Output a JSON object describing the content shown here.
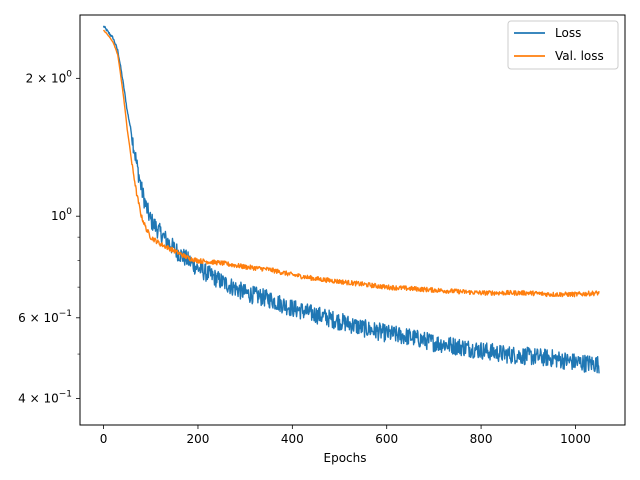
{
  "chart_data": {
    "type": "line",
    "title": "",
    "xlabel": "Epochs",
    "ylabel": "",
    "xlim": [
      -50,
      1105
    ],
    "ylim": [
      0.35,
      2.75
    ],
    "yscale": "log",
    "grid": false,
    "legend_position": "top-right",
    "xticks": [
      {
        "value": 0,
        "label": "0"
      },
      {
        "value": 200,
        "label": "200"
      },
      {
        "value": 400,
        "label": "400"
      },
      {
        "value": 600,
        "label": "600"
      },
      {
        "value": 800,
        "label": "800"
      },
      {
        "value": 1000,
        "label": "1000"
      }
    ],
    "yticks_major": [
      {
        "value": 0.4,
        "label_base": "4 × 10",
        "label_exp": "−1"
      },
      {
        "value": 0.6,
        "label_base": "6 × 10",
        "label_exp": "−1"
      },
      {
        "value": 1.0,
        "label_base": "10",
        "label_exp": "0"
      },
      {
        "value": 2.0,
        "label_base": "2 × 10",
        "label_exp": "0"
      }
    ],
    "yticks_minor": [
      0.5,
      0.7,
      0.8,
      0.9,
      3.0
    ],
    "series": [
      {
        "name": "Loss",
        "color": "#1f77b4",
        "noise": 0.045,
        "x": [
          0,
          10,
          20,
          30,
          40,
          50,
          60,
          70,
          80,
          90,
          100,
          120,
          140,
          160,
          180,
          200,
          250,
          300,
          350,
          400,
          450,
          500,
          550,
          600,
          650,
          700,
          750,
          800,
          850,
          900,
          950,
          1000,
          1050
        ],
        "y": [
          2.6,
          2.52,
          2.45,
          2.3,
          2.0,
          1.7,
          1.5,
          1.3,
          1.15,
          1.05,
          0.98,
          0.92,
          0.87,
          0.83,
          0.8,
          0.77,
          0.72,
          0.68,
          0.66,
          0.63,
          0.61,
          0.59,
          0.57,
          0.555,
          0.545,
          0.53,
          0.52,
          0.51,
          0.5,
          0.495,
          0.49,
          0.48,
          0.475
        ]
      },
      {
        "name": "Val. loss",
        "color": "#ff7f0e",
        "noise": 0.012,
        "x": [
          0,
          10,
          20,
          30,
          40,
          50,
          60,
          70,
          80,
          90,
          100,
          120,
          140,
          160,
          180,
          200,
          250,
          300,
          350,
          400,
          450,
          500,
          550,
          600,
          650,
          700,
          750,
          800,
          850,
          900,
          950,
          1000,
          1050
        ],
        "y": [
          2.55,
          2.48,
          2.4,
          2.25,
          1.9,
          1.55,
          1.3,
          1.12,
          1.0,
          0.94,
          0.9,
          0.87,
          0.85,
          0.83,
          0.81,
          0.8,
          0.79,
          0.775,
          0.765,
          0.745,
          0.73,
          0.72,
          0.71,
          0.7,
          0.695,
          0.69,
          0.685,
          0.68,
          0.68,
          0.68,
          0.675,
          0.675,
          0.68
        ]
      }
    ]
  }
}
